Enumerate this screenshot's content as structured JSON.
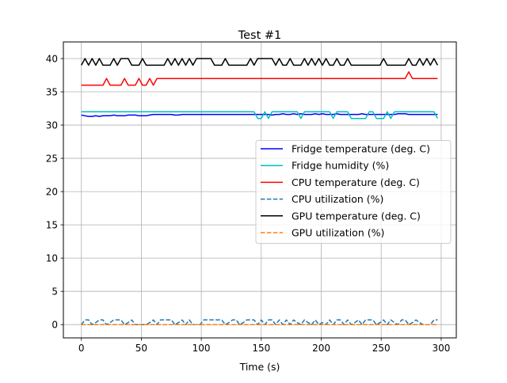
{
  "chart_data": {
    "type": "line",
    "title": "Test #1",
    "xlabel": "Time (s)",
    "ylabel": "",
    "xlim": [
      -15,
      312.6
    ],
    "ylim": [
      -2,
      42.5
    ],
    "xticks": [
      0,
      50,
      100,
      150,
      200,
      250,
      300
    ],
    "yticks": [
      0,
      5,
      10,
      15,
      20,
      25,
      30,
      35,
      40
    ],
    "grid": true,
    "legend_position": "center-right",
    "x_start": 0,
    "x_step": 3,
    "series": [
      {
        "name": "Fridge temperature (deg. C)",
        "color": "#0000ff",
        "dash": false,
        "values": [
          31.5,
          31.4,
          31.3,
          31.3,
          31.4,
          31.3,
          31.4,
          31.4,
          31.4,
          31.5,
          31.4,
          31.4,
          31.4,
          31.5,
          31.5,
          31.5,
          31.4,
          31.4,
          31.4,
          31.5,
          31.6,
          31.6,
          31.6,
          31.6,
          31.6,
          31.6,
          31.5,
          31.5,
          31.6,
          31.6,
          31.6,
          31.6,
          31.6,
          31.6,
          31.6,
          31.6,
          31.6,
          31.6,
          31.6,
          31.6,
          31.6,
          31.6,
          31.6,
          31.6,
          31.6,
          31.6,
          31.6,
          31.6,
          31.6,
          31.6,
          31.6,
          31.6,
          31.6,
          31.5,
          31.6,
          31.6,
          31.7,
          31.6,
          31.6,
          31.7,
          31.6,
          31.7,
          31.6,
          31.6,
          31.6,
          31.7,
          31.6,
          31.7,
          31.6,
          31.6,
          31.6,
          31.7,
          31.6,
          31.6,
          31.6,
          31.6,
          31.6,
          31.6,
          31.7,
          31.6,
          31.6,
          31.6,
          31.6,
          31.6,
          31.6,
          31.6,
          31.6,
          31.6,
          31.7,
          31.7,
          31.7,
          31.6,
          31.6,
          31.6,
          31.6,
          31.6,
          31.6,
          31.6,
          31.6,
          31.6
        ]
      },
      {
        "name": "Fridge humidity (%)",
        "color": "#00bfbf",
        "dash": false,
        "values": [
          32,
          32,
          32,
          32,
          32,
          32,
          32,
          32,
          32,
          32,
          32,
          32,
          32,
          32,
          32,
          32,
          32,
          32,
          32,
          32,
          32,
          32,
          32,
          32,
          32,
          32,
          32,
          32,
          32,
          32,
          32,
          32,
          32,
          32,
          32,
          32,
          32,
          32,
          32,
          32,
          32,
          32,
          32,
          32,
          32,
          32,
          32,
          32,
          32,
          31,
          31,
          32,
          31,
          32,
          32,
          32,
          32,
          32,
          32,
          32,
          32,
          31,
          32,
          32,
          32,
          32,
          32,
          32,
          32,
          32,
          31,
          32,
          32,
          32,
          32,
          31,
          31,
          31,
          31,
          31,
          32,
          32,
          31,
          31,
          31,
          32,
          31,
          32,
          32,
          32,
          32,
          32,
          32,
          32,
          32,
          32,
          32,
          32,
          32,
          31
        ]
      },
      {
        "name": "CPU temperature (deg. C)",
        "color": "#ff0000",
        "dash": false,
        "values": [
          36,
          36,
          36,
          36,
          36,
          36,
          36,
          37,
          36,
          36,
          36,
          36,
          37,
          36,
          36,
          36,
          37,
          36,
          36,
          37,
          36,
          37,
          37,
          37,
          37,
          37,
          37,
          37,
          37,
          37,
          37,
          37,
          37,
          37,
          37,
          37,
          37,
          37,
          37,
          37,
          37,
          37,
          37,
          37,
          37,
          37,
          37,
          37,
          37,
          37,
          37,
          37,
          37,
          37,
          37,
          37,
          37,
          37,
          37,
          37,
          37,
          37,
          37,
          37,
          37,
          37,
          37,
          37,
          37,
          37,
          37,
          37,
          37,
          37,
          37,
          37,
          37,
          37,
          37,
          37,
          37,
          37,
          37,
          37,
          37,
          37,
          37,
          37,
          37,
          37,
          37,
          38,
          37,
          37,
          37,
          37,
          37,
          37,
          37,
          37
        ]
      },
      {
        "name": "CPU utilization (%)",
        "color": "#1f77b4",
        "dash": true,
        "values": [
          0,
          0.7,
          0.7,
          0,
          0.3,
          0.7,
          0.7,
          0,
          0.3,
          0.7,
          0.7,
          0.7,
          0,
          0.3,
          0.7,
          0,
          0,
          0,
          0,
          0.3,
          0.7,
          0,
          0.7,
          0.7,
          0.7,
          0.7,
          0,
          0.3,
          0.7,
          0,
          0.7,
          0,
          0,
          0,
          0.7,
          0.7,
          0.7,
          0.7,
          0.7,
          0.7,
          0,
          0.3,
          0.7,
          0.7,
          0,
          0.3,
          0.7,
          0.7,
          0.7,
          0,
          0.7,
          0,
          0.7,
          0.7,
          0,
          0.7,
          0,
          0.7,
          0,
          0.7,
          0.3,
          0,
          0.7,
          0.3,
          0,
          0.7,
          0,
          0.3,
          0,
          0.7,
          0,
          0.7,
          0.7,
          0,
          0.7,
          0,
          0.3,
          0.7,
          0,
          0.7,
          0.7,
          0.7,
          0,
          0.3,
          0.7,
          0,
          0.7,
          0.3,
          0,
          0.7,
          0.7,
          0,
          0.3,
          0.7,
          0.3,
          0,
          0,
          0,
          0.7,
          0.7
        ]
      },
      {
        "name": "GPU temperature (deg. C)",
        "color": "#000000",
        "dash": false,
        "values": [
          39,
          40,
          39,
          40,
          39,
          40,
          39,
          39,
          39,
          40,
          39,
          40,
          40,
          40,
          39,
          39,
          39,
          40,
          39,
          39,
          39,
          39,
          39,
          39,
          40,
          39,
          40,
          39,
          40,
          39,
          40,
          39,
          40,
          40,
          40,
          40,
          40,
          39,
          39,
          39,
          40,
          39,
          39,
          39,
          39,
          39,
          39,
          40,
          39,
          40,
          40,
          40,
          40,
          40,
          39,
          40,
          39,
          39,
          40,
          39,
          39,
          39,
          40,
          39,
          40,
          39,
          40,
          39,
          40,
          39,
          39,
          40,
          39,
          39,
          40,
          39,
          39,
          39,
          39,
          39,
          39,
          39,
          39,
          39,
          40,
          39,
          39,
          39,
          39,
          39,
          39,
          40,
          39,
          39,
          40,
          39,
          40,
          39,
          40,
          39
        ]
      },
      {
        "name": "GPU utilization (%)",
        "color": "#ff7f0e",
        "dash": true,
        "values": [
          0,
          0,
          0,
          0,
          0,
          0,
          0,
          0,
          0,
          0,
          0,
          0,
          0,
          0,
          0,
          0,
          0,
          0,
          0,
          0,
          0,
          0,
          0,
          0,
          0,
          0,
          0,
          0,
          0,
          0,
          0,
          0,
          0,
          0,
          0,
          0,
          0,
          0,
          0,
          0,
          0,
          0,
          0,
          0,
          0,
          0,
          0,
          0,
          0,
          0,
          0,
          0,
          0,
          0,
          0,
          0,
          0,
          0,
          0,
          0,
          0,
          0,
          0,
          0,
          0,
          0,
          0,
          0,
          0,
          0,
          0,
          0,
          0,
          0,
          0,
          0,
          0,
          0,
          0,
          0,
          0,
          0,
          0,
          0,
          0,
          0,
          0,
          0,
          0,
          0,
          0,
          0,
          0,
          0,
          0,
          0,
          0,
          0,
          0,
          0
        ]
      }
    ]
  }
}
